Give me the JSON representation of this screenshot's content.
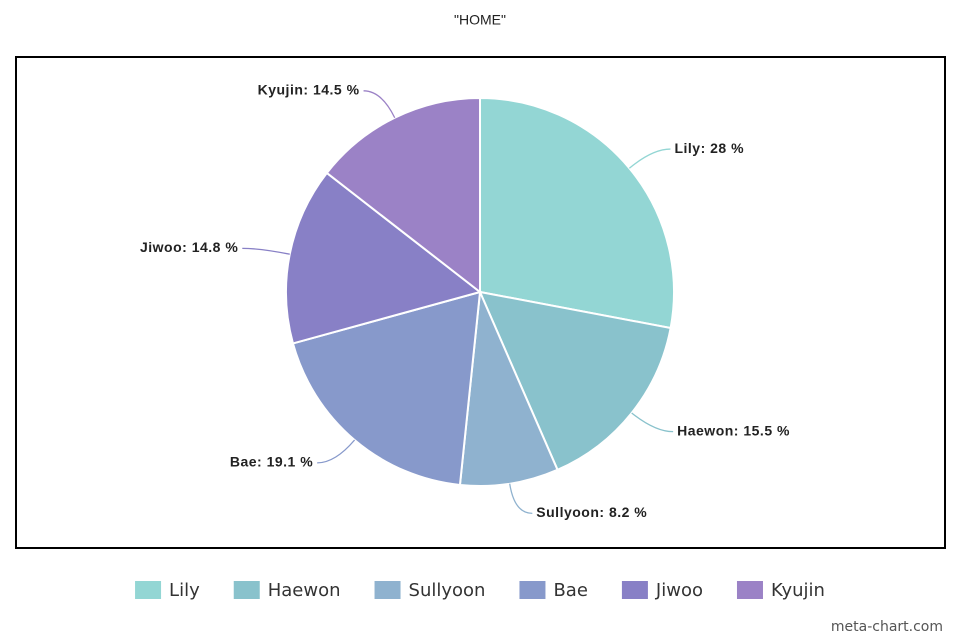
{
  "chart_data": {
    "type": "pie",
    "title": "\"HOME\"",
    "categories": [
      "Lily",
      "Haewon",
      "Sullyoon",
      "Bae",
      "Jiwoo",
      "Kyujin"
    ],
    "values": [
      28,
      15.5,
      8.2,
      19.1,
      14.8,
      14.5
    ],
    "value_labels": [
      "Lily: 28 %",
      "Haewon: 15.5 %",
      "Sullyoon: 8.2 %",
      "Bae: 19.1 %",
      "Jiwoo: 14.8 %",
      "Kyujin: 14.5 %"
    ],
    "colors": [
      "#93d6d4",
      "#89c2cc",
      "#8fb2cf",
      "#8799cb",
      "#8880c6",
      "#9b82c6"
    ],
    "legend": "bottom",
    "watermark": "meta-chart.com"
  }
}
